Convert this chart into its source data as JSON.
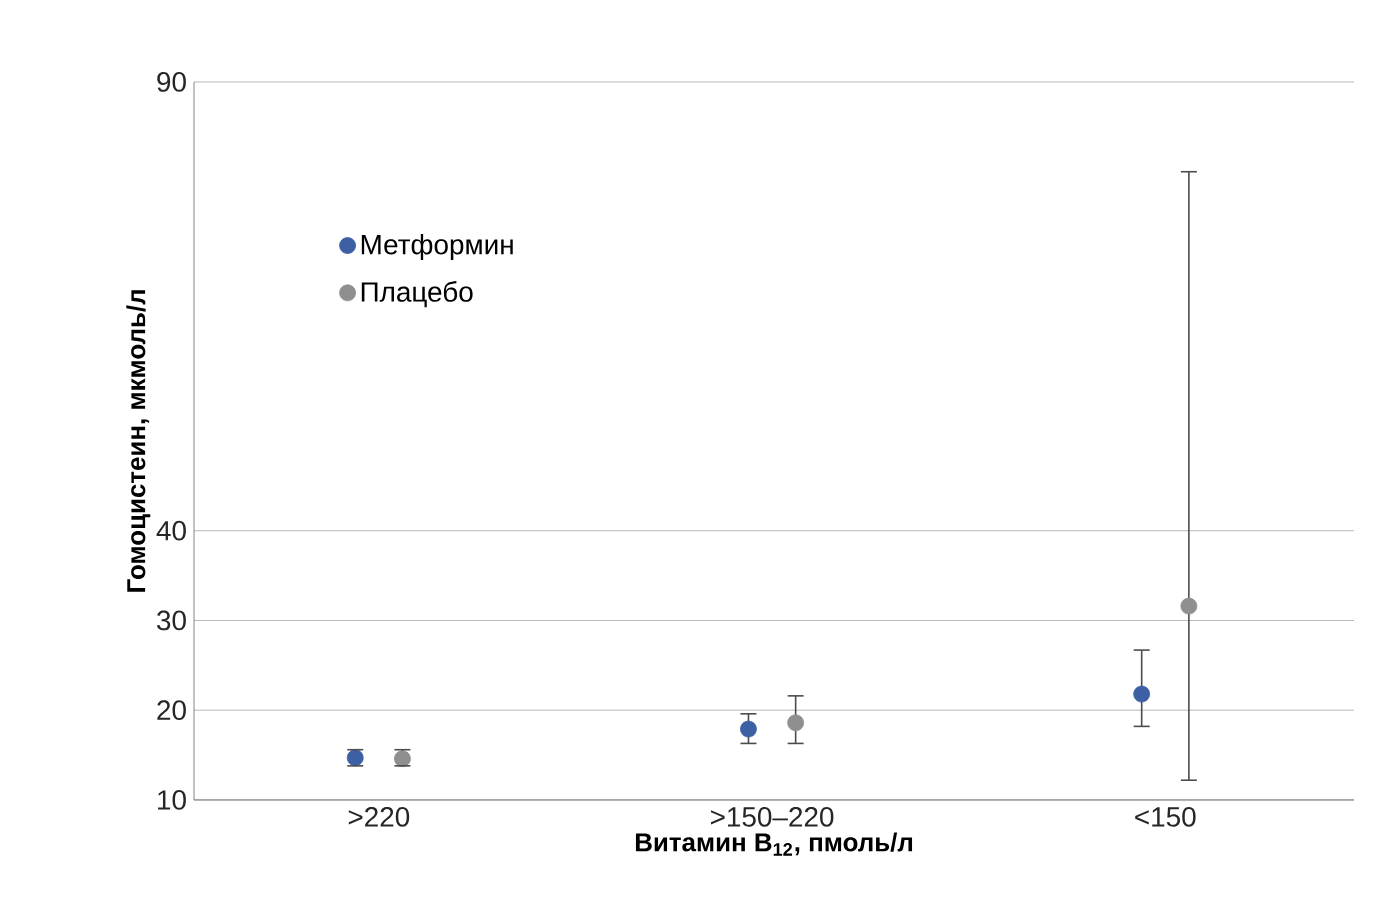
{
  "chart_data": {
    "type": "scatter",
    "xlabel": "Витамин B$_{12}$, пмоль/л",
    "ylabel": "Гомоцистеин, мкмоль/л",
    "categories": [
      ">220",
      ">150–220",
      "<150"
    ],
    "series": [
      {
        "name": "Метформин",
        "color": "#3d5fa3",
        "values": [
          14.7,
          17.9,
          21.8
        ],
        "errors": [
          [
            13.8,
            15.6
          ],
          [
            16.3,
            19.6
          ],
          [
            18.2,
            26.7
          ]
        ]
      },
      {
        "name": "Плацебо",
        "color": "#8f8f8f",
        "values": [
          14.6,
          18.6,
          31.6
        ],
        "errors": [
          [
            13.8,
            15.6
          ],
          [
            16.3,
            21.6
          ],
          [
            12.2,
            80
          ]
        ]
      }
    ],
    "ylim": [
      10,
      90
    ],
    "yticks": [
      10,
      20,
      30,
      40,
      90
    ],
    "grid": "y",
    "legend": "top left",
    "marker": "circle"
  }
}
